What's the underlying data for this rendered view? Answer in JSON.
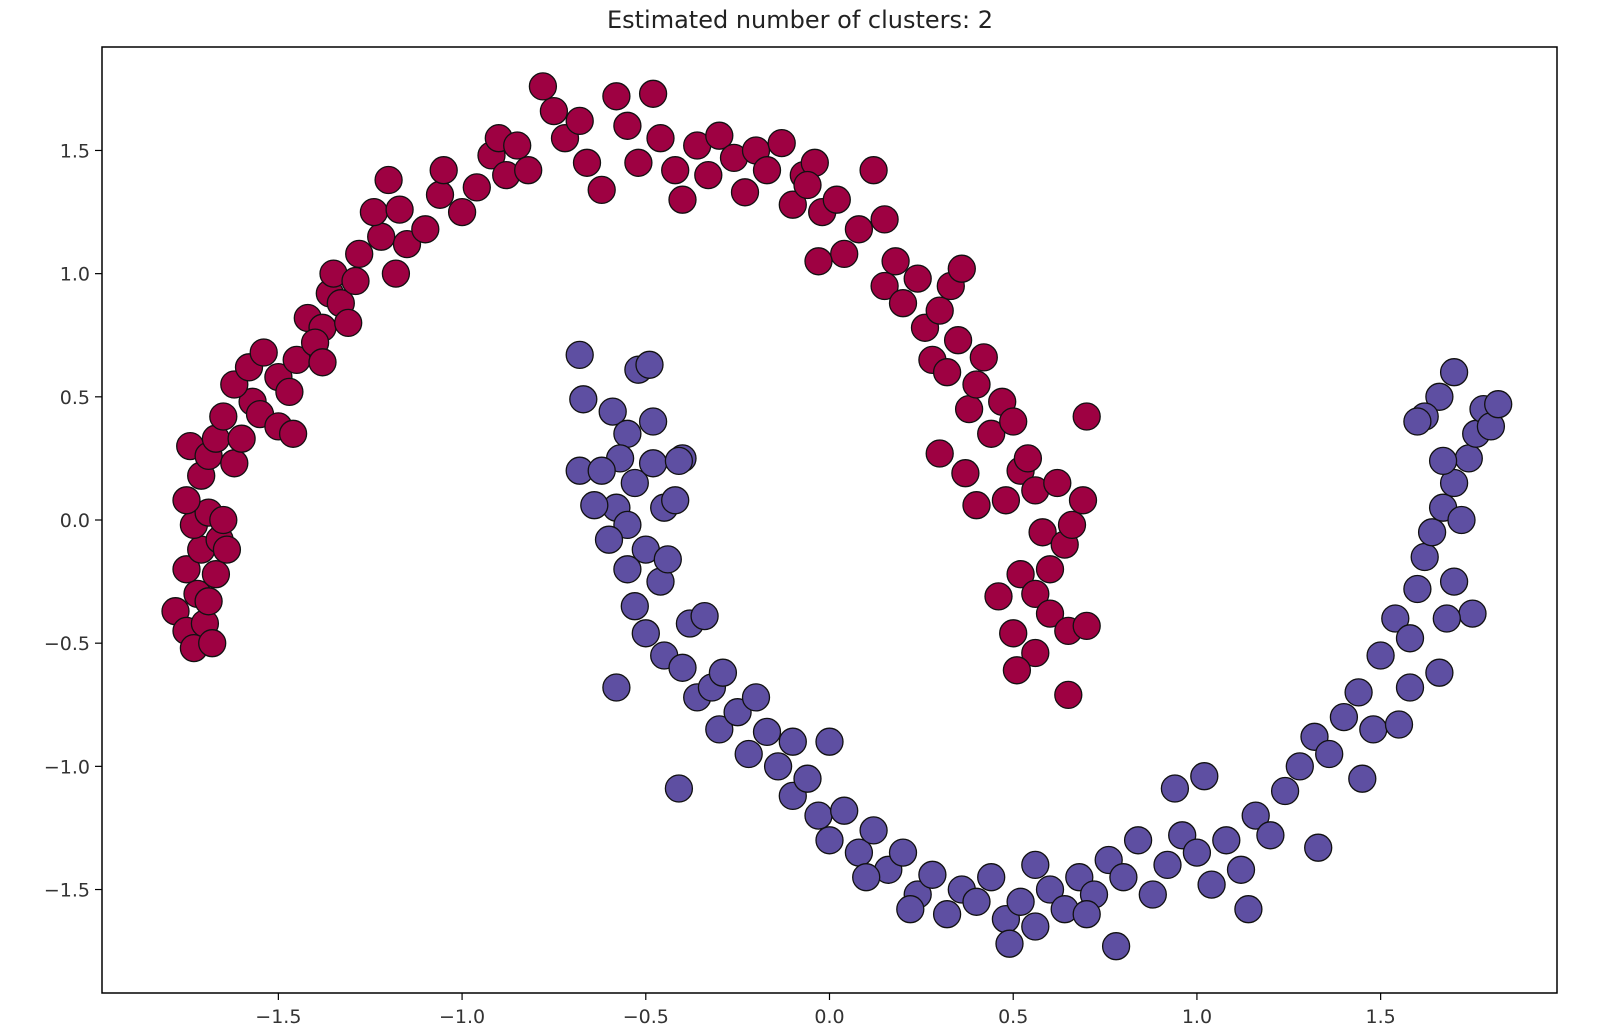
{
  "chart_data": {
    "type": "scatter",
    "title": "Estimated number of clusters: 2",
    "xlabel": "",
    "ylabel": "",
    "xlim": [
      -1.98,
      1.98
    ],
    "ylim": [
      -1.92,
      1.92
    ],
    "xticks": [
      -1.5,
      -1.0,
      -0.5,
      0.0,
      0.5,
      1.0,
      1.5
    ],
    "xtick_labels": [
      "−1.5",
      "−1.0",
      "−0.5",
      "0.0",
      "0.5",
      "1.0",
      "1.5"
    ],
    "yticks": [
      1.5,
      1.0,
      0.5,
      0.0,
      -0.5,
      -1.0,
      -1.5
    ],
    "ytick_labels": [
      "1.5",
      "1.0",
      "0.5",
      "0.0",
      "−0.5",
      "−1.0",
      "−1.5"
    ],
    "grid": false,
    "series": [
      {
        "color": "#9e0142",
        "points": [
          [
            -1.78,
            -0.37
          ],
          [
            -1.75,
            -0.45
          ],
          [
            -1.73,
            -0.52
          ],
          [
            -1.7,
            -0.42
          ],
          [
            -1.68,
            -0.5
          ],
          [
            -1.72,
            -0.3
          ],
          [
            -1.69,
            -0.33
          ],
          [
            -1.75,
            -0.2
          ],
          [
            -1.71,
            -0.12
          ],
          [
            -1.67,
            -0.22
          ],
          [
            -1.73,
            -0.02
          ],
          [
            -1.69,
            0.03
          ],
          [
            -1.66,
            -0.08
          ],
          [
            -1.75,
            0.08
          ],
          [
            -1.71,
            0.18
          ],
          [
            -1.64,
            -0.12
          ],
          [
            -1.65,
            0.0
          ],
          [
            -1.74,
            0.3
          ],
          [
            -1.69,
            0.26
          ],
          [
            -1.67,
            0.33
          ],
          [
            -1.62,
            0.23
          ],
          [
            -1.65,
            0.42
          ],
          [
            -1.6,
            0.33
          ],
          [
            -1.57,
            0.48
          ],
          [
            -1.62,
            0.55
          ],
          [
            -1.58,
            0.62
          ],
          [
            -1.54,
            0.68
          ],
          [
            -1.5,
            0.58
          ],
          [
            -1.55,
            0.43
          ],
          [
            -1.5,
            0.38
          ],
          [
            -1.47,
            0.52
          ],
          [
            -1.45,
            0.65
          ],
          [
            -1.46,
            0.35
          ],
          [
            -1.42,
            0.82
          ],
          [
            -1.38,
            0.78
          ],
          [
            -1.4,
            0.72
          ],
          [
            -1.36,
            0.92
          ],
          [
            -1.33,
            0.88
          ],
          [
            -1.35,
            1.0
          ],
          [
            -1.31,
            0.8
          ],
          [
            -1.38,
            0.64
          ],
          [
            -1.29,
            0.97
          ],
          [
            -1.28,
            1.08
          ],
          [
            -1.22,
            1.15
          ],
          [
            -1.24,
            1.25
          ],
          [
            -1.2,
            1.38
          ],
          [
            -1.17,
            1.26
          ],
          [
            -1.15,
            1.12
          ],
          [
            -1.18,
            1.0
          ],
          [
            -1.1,
            1.18
          ],
          [
            -1.06,
            1.32
          ],
          [
            -1.05,
            1.42
          ],
          [
            -1.0,
            1.25
          ],
          [
            -0.96,
            1.35
          ],
          [
            -0.92,
            1.48
          ],
          [
            -0.9,
            1.55
          ],
          [
            -0.88,
            1.4
          ],
          [
            -0.85,
            1.52
          ],
          [
            -0.82,
            1.42
          ],
          [
            -0.78,
            1.76
          ],
          [
            -0.75,
            1.66
          ],
          [
            -0.72,
            1.55
          ],
          [
            -0.68,
            1.62
          ],
          [
            -0.66,
            1.45
          ],
          [
            -0.62,
            1.34
          ],
          [
            -0.58,
            1.72
          ],
          [
            -0.55,
            1.6
          ],
          [
            -0.52,
            1.45
          ],
          [
            -0.48,
            1.73
          ],
          [
            -0.46,
            1.55
          ],
          [
            -0.42,
            1.42
          ],
          [
            -0.4,
            1.3
          ],
          [
            -0.36,
            1.52
          ],
          [
            -0.33,
            1.4
          ],
          [
            -0.3,
            1.56
          ],
          [
            -0.26,
            1.47
          ],
          [
            -0.23,
            1.33
          ],
          [
            -0.2,
            1.5
          ],
          [
            -0.17,
            1.42
          ],
          [
            -0.13,
            1.53
          ],
          [
            -0.1,
            1.28
          ],
          [
            -0.07,
            1.4
          ],
          [
            -0.04,
            1.45
          ],
          [
            -0.02,
            1.25
          ],
          [
            0.02,
            1.3
          ],
          [
            0.04,
            1.08
          ],
          [
            0.08,
            1.18
          ],
          [
            0.12,
            1.42
          ],
          [
            0.15,
            1.22
          ],
          [
            0.18,
            1.05
          ],
          [
            -0.03,
            1.05
          ],
          [
            0.15,
            0.95
          ],
          [
            0.2,
            0.88
          ],
          [
            0.24,
            0.98
          ],
          [
            0.26,
            0.78
          ],
          [
            0.3,
            0.85
          ],
          [
            0.33,
            0.95
          ],
          [
            0.36,
            1.02
          ],
          [
            0.28,
            0.65
          ],
          [
            0.32,
            0.6
          ],
          [
            0.35,
            0.73
          ],
          [
            0.38,
            0.45
          ],
          [
            0.4,
            0.55
          ],
          [
            0.42,
            0.66
          ],
          [
            0.44,
            0.35
          ],
          [
            0.47,
            0.48
          ],
          [
            0.5,
            0.4
          ],
          [
            0.52,
            0.2
          ],
          [
            0.48,
            0.08
          ],
          [
            0.54,
            0.25
          ],
          [
            0.56,
            0.12
          ],
          [
            0.58,
            -0.05
          ],
          [
            0.62,
            0.15
          ],
          [
            0.64,
            -0.1
          ],
          [
            0.6,
            -0.2
          ],
          [
            0.66,
            -0.02
          ],
          [
            0.69,
            0.08
          ],
          [
            0.52,
            -0.22
          ],
          [
            0.56,
            -0.3
          ],
          [
            0.6,
            -0.38
          ],
          [
            0.65,
            -0.45
          ],
          [
            0.7,
            -0.43
          ],
          [
            0.5,
            -0.46
          ],
          [
            0.56,
            -0.54
          ],
          [
            0.51,
            -0.61
          ],
          [
            0.65,
            -0.71
          ],
          [
            0.3,
            0.27
          ],
          [
            0.37,
            0.19
          ],
          [
            0.4,
            0.06
          ],
          [
            0.46,
            -0.31
          ],
          [
            0.7,
            0.42
          ],
          [
            -0.06,
            1.36
          ]
        ]
      },
      {
        "color": "#5e4fa2",
        "points": [
          [
            -0.68,
            0.67
          ],
          [
            -0.67,
            0.49
          ],
          [
            -0.52,
            0.61
          ],
          [
            -0.49,
            0.63
          ],
          [
            -0.59,
            0.44
          ],
          [
            -0.55,
            0.35
          ],
          [
            -0.57,
            0.25
          ],
          [
            -0.53,
            0.15
          ],
          [
            -0.58,
            0.05
          ],
          [
            -0.55,
            -0.02
          ],
          [
            -0.6,
            -0.08
          ],
          [
            -0.55,
            -0.2
          ],
          [
            -0.48,
            0.4
          ],
          [
            -0.48,
            0.23
          ],
          [
            -0.45,
            0.05
          ],
          [
            -0.42,
            0.08
          ],
          [
            -0.4,
            0.25
          ],
          [
            -0.5,
            -0.12
          ],
          [
            -0.46,
            -0.25
          ],
          [
            -0.53,
            -0.35
          ],
          [
            -0.5,
            -0.46
          ],
          [
            -0.45,
            -0.55
          ],
          [
            -0.38,
            -0.42
          ],
          [
            -0.4,
            -0.6
          ],
          [
            -0.36,
            -0.72
          ],
          [
            -0.32,
            -0.68
          ],
          [
            -0.3,
            -0.85
          ],
          [
            -0.25,
            -0.78
          ],
          [
            -0.22,
            -0.95
          ],
          [
            -0.2,
            -0.72
          ],
          [
            -0.17,
            -0.86
          ],
          [
            -0.14,
            -1.0
          ],
          [
            -0.1,
            -1.12
          ],
          [
            -0.06,
            -1.05
          ],
          [
            -0.03,
            -1.2
          ],
          [
            0.0,
            -1.3
          ],
          [
            0.04,
            -1.18
          ],
          [
            0.08,
            -1.35
          ],
          [
            0.12,
            -1.26
          ],
          [
            0.16,
            -1.42
          ],
          [
            0.2,
            -1.35
          ],
          [
            0.24,
            -1.52
          ],
          [
            0.28,
            -1.44
          ],
          [
            0.32,
            -1.6
          ],
          [
            0.36,
            -1.5
          ],
          [
            0.4,
            -1.55
          ],
          [
            0.44,
            -1.45
          ],
          [
            0.48,
            -1.62
          ],
          [
            0.52,
            -1.55
          ],
          [
            0.56,
            -1.4
          ],
          [
            0.6,
            -1.5
          ],
          [
            0.64,
            -1.58
          ],
          [
            0.68,
            -1.45
          ],
          [
            0.72,
            -1.52
          ],
          [
            0.76,
            -1.38
          ],
          [
            0.8,
            -1.45
          ],
          [
            0.84,
            -1.3
          ],
          [
            0.88,
            -1.52
          ],
          [
            0.92,
            -1.4
          ],
          [
            0.96,
            -1.28
          ],
          [
            1.0,
            -1.35
          ],
          [
            1.04,
            -1.48
          ],
          [
            1.08,
            -1.3
          ],
          [
            1.12,
            -1.42
          ],
          [
            1.16,
            -1.2
          ],
          [
            1.2,
            -1.28
          ],
          [
            1.24,
            -1.1
          ],
          [
            1.28,
            -1.0
          ],
          [
            1.32,
            -0.88
          ],
          [
            1.36,
            -0.95
          ],
          [
            1.4,
            -0.8
          ],
          [
            1.44,
            -0.7
          ],
          [
            1.48,
            -0.85
          ],
          [
            1.5,
            -0.55
          ],
          [
            1.54,
            -0.4
          ],
          [
            1.58,
            -0.48
          ],
          [
            1.6,
            -0.28
          ],
          [
            1.62,
            -0.15
          ],
          [
            1.64,
            -0.05
          ],
          [
            1.67,
            0.05
          ],
          [
            1.7,
            0.15
          ],
          [
            1.72,
            0.0
          ],
          [
            1.74,
            0.25
          ],
          [
            1.76,
            0.35
          ],
          [
            1.78,
            0.45
          ],
          [
            1.8,
            0.38
          ],
          [
            1.82,
            0.47
          ],
          [
            1.7,
            0.6
          ],
          [
            1.66,
            0.5
          ],
          [
            1.62,
            0.42
          ],
          [
            1.75,
            -0.38
          ],
          [
            1.7,
            -0.25
          ],
          [
            1.66,
            -0.62
          ],
          [
            1.58,
            -0.68
          ],
          [
            1.55,
            -0.83
          ],
          [
            1.33,
            -1.33
          ],
          [
            1.02,
            -1.04
          ],
          [
            0.94,
            -1.09
          ],
          [
            0.78,
            -1.73
          ],
          [
            0.49,
            -1.72
          ],
          [
            -0.41,
            -1.09
          ],
          [
            -0.58,
            -0.68
          ],
          [
            -0.44,
            -0.16
          ],
          [
            -0.41,
            0.24
          ],
          [
            -0.34,
            -0.39
          ],
          [
            -0.29,
            -0.62
          ],
          [
            -0.1,
            -0.9
          ],
          [
            0.0,
            -0.9
          ],
          [
            0.1,
            -1.45
          ],
          [
            0.22,
            -1.58
          ],
          [
            0.56,
            -1.65
          ],
          [
            0.7,
            -1.6
          ],
          [
            1.14,
            -1.58
          ],
          [
            -0.68,
            0.2
          ],
          [
            -0.62,
            0.2
          ],
          [
            -0.64,
            0.06
          ],
          [
            1.67,
            0.24
          ],
          [
            1.6,
            0.4
          ],
          [
            1.68,
            -0.4
          ],
          [
            1.45,
            -1.05
          ]
        ]
      }
    ]
  }
}
